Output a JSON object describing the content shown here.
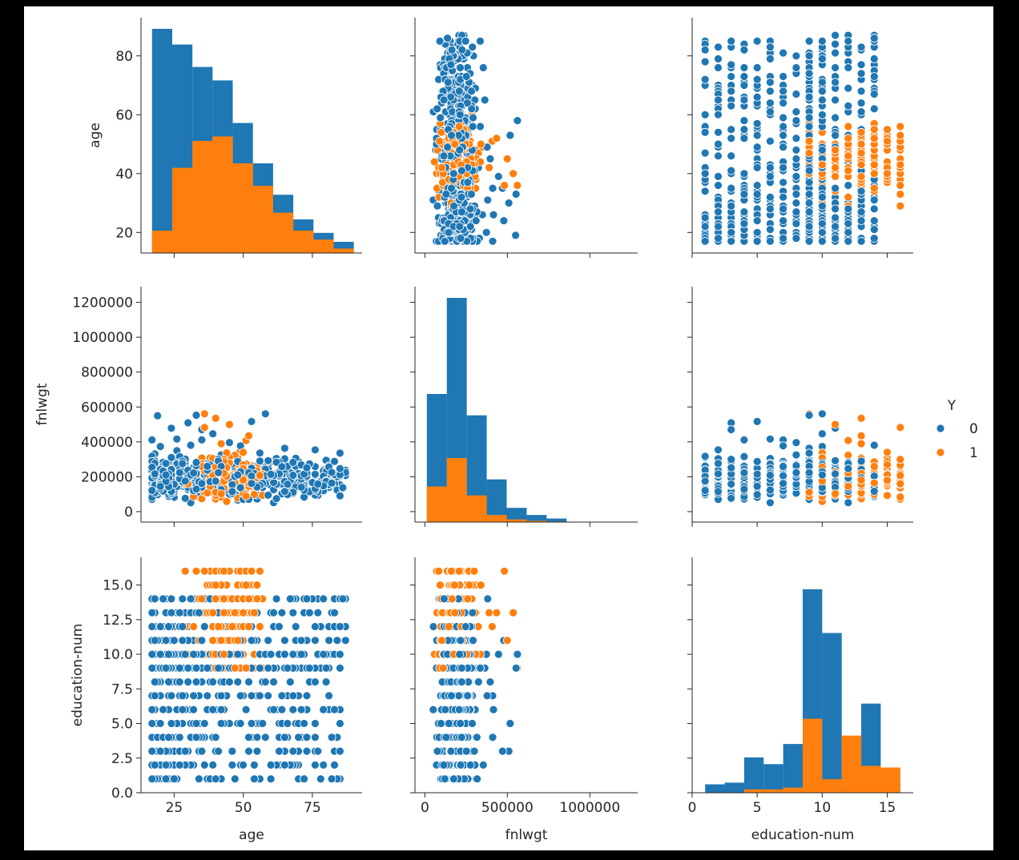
{
  "chart_data": {
    "type": "pairplot",
    "variables": [
      "age",
      "fnlwgt",
      "education-num"
    ],
    "hue": {
      "title": "Y",
      "levels": [
        {
          "label": "0",
          "color": "#1f77b4"
        },
        {
          "label": "1",
          "color": "#ff7f0e"
        }
      ]
    },
    "axes": {
      "age": {
        "range": [
          13,
          93
        ],
        "ticks": [
          20,
          40,
          60,
          80
        ],
        "xticks": [
          25,
          50,
          75
        ],
        "label": "age"
      },
      "fnlwgt": {
        "range": [
          -60000,
          1290000
        ],
        "ticks": [
          0,
          200000,
          400000,
          600000,
          800000,
          1000000,
          1200000
        ],
        "xticks": [
          0,
          500000,
          1000000
        ],
        "label": "fnlwgt"
      },
      "education-num": {
        "range": [
          0,
          17
        ],
        "ticks": [
          "0.0",
          "2.5",
          "5.0",
          "7.5",
          "10.0",
          "12.5",
          "15.0"
        ],
        "xticks": [
          0,
          5,
          10,
          15
        ],
        "label": "education-num"
      }
    },
    "histograms": {
      "age": {
        "edges": [
          17,
          24.3,
          31.6,
          38.9,
          46.2,
          53.5,
          60.8,
          68.1,
          75.4,
          82.7,
          90
        ],
        "series0": [
          50,
          46.5,
          41.5,
          38.5,
          29,
          20,
          13,
          7.5,
          4.5,
          2.5
        ],
        "series1": [
          5,
          19,
          25,
          26,
          20,
          15,
          9,
          5,
          3,
          1
        ]
      },
      "fnlwgt": {
        "edges": [
          12000,
          133000,
          254000,
          375000,
          496000,
          617000,
          738000,
          859000
        ],
        "series0": [
          720000,
          1260000,
          600000,
          240000,
          80000,
          40000,
          20000
        ],
        "series1": [
          200000,
          360000,
          150000,
          40000,
          15000,
          7000,
          3000
        ]
      },
      "education-num": {
        "edges": [
          1,
          2.5,
          4,
          5.5,
          7,
          8.5,
          10,
          11.5,
          13,
          14.5,
          16
        ],
        "series0": [
          0.5,
          0.6,
          2.1,
          1.7,
          2.9,
          12.1,
          9.5,
          1.0,
          5.3,
          1.5
        ],
        "series1": [
          0.0,
          0.0,
          0.2,
          0.2,
          0.3,
          4.4,
          0.8,
          3.4,
          1.6,
          1.5
        ],
        "ylim": [
          0,
          14
        ]
      }
    }
  }
}
